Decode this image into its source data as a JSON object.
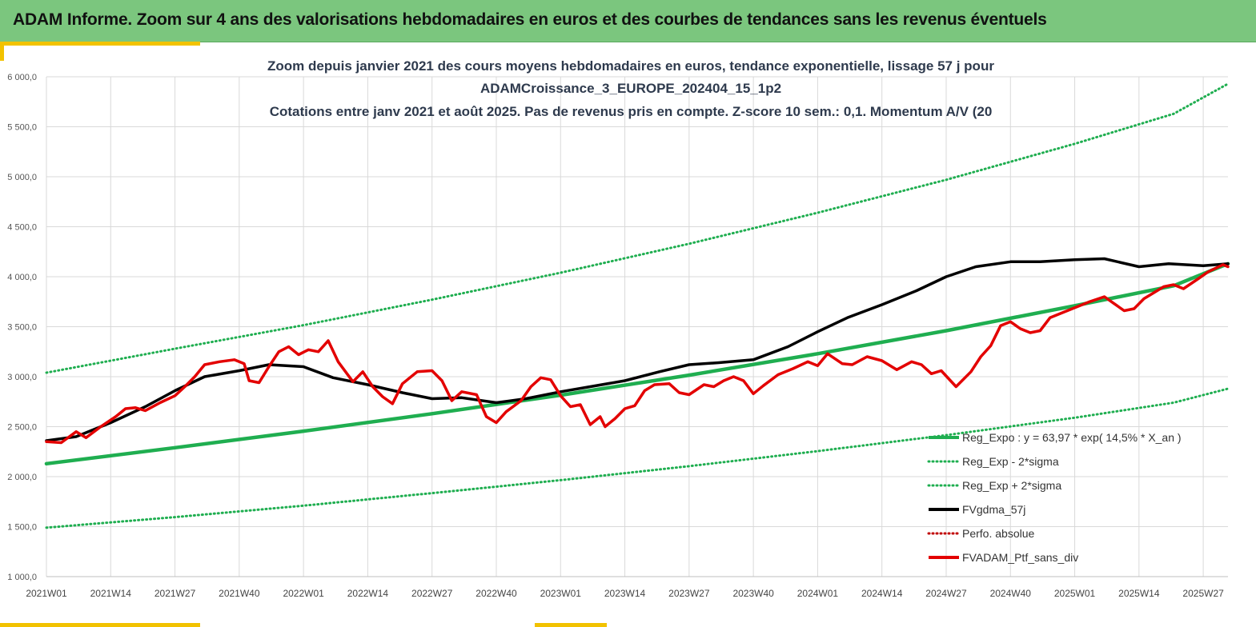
{
  "header": {
    "title": "ADAM Informe. Zoom sur 4 ans des valorisations hebdomadaires en euros et des courbes de tendances sans les revenus éventuels"
  },
  "colors": {
    "banner": "#7bc67e",
    "accent": "#f2c200",
    "trend_green": "#1fae50",
    "gdma_black": "#000000",
    "ptf_red": "#e30000",
    "perfo_red": "#c00000"
  },
  "chart_data": {
    "type": "line",
    "title_lines": [
      "Zoom depuis janvier 2021 des cours moyens hebdomadaires  en euros, tendance exponentielle, lissage 57 j pour",
      "ADAMCroissance_3_EUROPE_202404_15_1p2",
      "Cotations  entre janv 2021 et août 2025. Pas de revenus pris en compte. Z-score 10 sem.: 0,1. Momentum A/V (20"
    ],
    "ylim": [
      1000,
      6000
    ],
    "yticks": [
      "1 000,0",
      "1 500,0",
      "2 000,0",
      "2 500,0",
      "3 000,0",
      "3 500,0",
      "4 000,0",
      "4 500,0",
      "5 000,0",
      "5 500,0",
      "6 000,0"
    ],
    "xticks": [
      "2021W01",
      "2021W14",
      "2021W27",
      "2021W40",
      "2022W01",
      "2022W14",
      "2022W27",
      "2022W40",
      "2023W01",
      "2023W14",
      "2023W27",
      "2023W40",
      "2024W01",
      "2024W14",
      "2024W27",
      "2024W40",
      "2025W01",
      "2025W14",
      "2025W27"
    ],
    "x_range_weeks": [
      0,
      239
    ],
    "grid": "vertical-and-horizontal",
    "legend_position": "bottom-right",
    "series": [
      {
        "name": "Reg_Expo : y = 63,97 * exp( 14,5% *  X_an )",
        "style": "solid-thick",
        "color": "#1fae50",
        "points": [
          [
            0,
            2130
          ],
          [
            26,
            2290
          ],
          [
            52,
            2455
          ],
          [
            78,
            2630
          ],
          [
            104,
            2815
          ],
          [
            130,
            3015
          ],
          [
            156,
            3230
          ],
          [
            182,
            3460
          ],
          [
            208,
            3710
          ],
          [
            228,
            3910
          ],
          [
            239,
            4130
          ]
        ]
      },
      {
        "name": "Reg_Exp - 2*sigma",
        "style": "dotted",
        "color": "#1fae50",
        "points": [
          [
            0,
            1490
          ],
          [
            26,
            1595
          ],
          [
            52,
            1710
          ],
          [
            78,
            1835
          ],
          [
            104,
            1965
          ],
          [
            130,
            2105
          ],
          [
            156,
            2255
          ],
          [
            182,
            2415
          ],
          [
            208,
            2590
          ],
          [
            228,
            2740
          ],
          [
            239,
            2880
          ]
        ]
      },
      {
        "name": "Reg_Exp + 2*sigma",
        "style": "dotted",
        "color": "#1fae50",
        "points": [
          [
            0,
            3040
          ],
          [
            26,
            3280
          ],
          [
            52,
            3515
          ],
          [
            78,
            3770
          ],
          [
            104,
            4040
          ],
          [
            130,
            4330
          ],
          [
            156,
            4640
          ],
          [
            182,
            4970
          ],
          [
            208,
            5330
          ],
          [
            228,
            5630
          ],
          [
            239,
            5930
          ]
        ]
      },
      {
        "name": "FVgdma_57j",
        "style": "solid-thick",
        "color": "#000000",
        "points": [
          [
            0,
            2360
          ],
          [
            6,
            2400
          ],
          [
            13,
            2540
          ],
          [
            20,
            2700
          ],
          [
            26,
            2860
          ],
          [
            32,
            3000
          ],
          [
            39,
            3060
          ],
          [
            45,
            3120
          ],
          [
            52,
            3100
          ],
          [
            58,
            2990
          ],
          [
            65,
            2920
          ],
          [
            72,
            2840
          ],
          [
            78,
            2780
          ],
          [
            84,
            2790
          ],
          [
            91,
            2740
          ],
          [
            97,
            2780
          ],
          [
            104,
            2850
          ],
          [
            110,
            2900
          ],
          [
            117,
            2960
          ],
          [
            124,
            3050
          ],
          [
            130,
            3120
          ],
          [
            136,
            3140
          ],
          [
            143,
            3170
          ],
          [
            150,
            3300
          ],
          [
            156,
            3450
          ],
          [
            162,
            3590
          ],
          [
            169,
            3720
          ],
          [
            176,
            3860
          ],
          [
            182,
            4000
          ],
          [
            188,
            4100
          ],
          [
            195,
            4150
          ],
          [
            201,
            4150
          ],
          [
            208,
            4170
          ],
          [
            214,
            4180
          ],
          [
            221,
            4100
          ],
          [
            227,
            4130
          ],
          [
            234,
            4110
          ],
          [
            239,
            4130
          ]
        ]
      },
      {
        "name": "Perfo. absolue",
        "style": "dotted",
        "color": "#c00000",
        "points": []
      },
      {
        "name": "FVADAM_Ptf_sans_div",
        "style": "solid-thick",
        "color": "#e30000",
        "points": [
          [
            0,
            2350
          ],
          [
            3,
            2340
          ],
          [
            6,
            2450
          ],
          [
            8,
            2390
          ],
          [
            11,
            2500
          ],
          [
            14,
            2600
          ],
          [
            16,
            2680
          ],
          [
            18,
            2690
          ],
          [
            20,
            2660
          ],
          [
            23,
            2740
          ],
          [
            26,
            2810
          ],
          [
            28,
            2900
          ],
          [
            30,
            3000
          ],
          [
            32,
            3120
          ],
          [
            35,
            3150
          ],
          [
            38,
            3170
          ],
          [
            40,
            3130
          ],
          [
            41,
            2960
          ],
          [
            43,
            2940
          ],
          [
            45,
            3100
          ],
          [
            47,
            3250
          ],
          [
            49,
            3300
          ],
          [
            51,
            3220
          ],
          [
            53,
            3270
          ],
          [
            55,
            3250
          ],
          [
            57,
            3360
          ],
          [
            59,
            3150
          ],
          [
            62,
            2950
          ],
          [
            64,
            3050
          ],
          [
            66,
            2900
          ],
          [
            68,
            2800
          ],
          [
            70,
            2730
          ],
          [
            72,
            2930
          ],
          [
            75,
            3050
          ],
          [
            78,
            3060
          ],
          [
            80,
            2960
          ],
          [
            82,
            2760
          ],
          [
            84,
            2850
          ],
          [
            87,
            2820
          ],
          [
            89,
            2600
          ],
          [
            91,
            2540
          ],
          [
            93,
            2650
          ],
          [
            96,
            2760
          ],
          [
            98,
            2900
          ],
          [
            100,
            2990
          ],
          [
            102,
            2970
          ],
          [
            104,
            2810
          ],
          [
            106,
            2700
          ],
          [
            108,
            2720
          ],
          [
            110,
            2520
          ],
          [
            112,
            2600
          ],
          [
            113,
            2500
          ],
          [
            115,
            2580
          ],
          [
            117,
            2680
          ],
          [
            119,
            2710
          ],
          [
            121,
            2860
          ],
          [
            123,
            2920
          ],
          [
            126,
            2930
          ],
          [
            128,
            2840
          ],
          [
            130,
            2820
          ],
          [
            133,
            2920
          ],
          [
            135,
            2900
          ],
          [
            137,
            2960
          ],
          [
            139,
            3000
          ],
          [
            141,
            2960
          ],
          [
            143,
            2830
          ],
          [
            145,
            2910
          ],
          [
            148,
            3020
          ],
          [
            151,
            3080
          ],
          [
            154,
            3150
          ],
          [
            156,
            3110
          ],
          [
            158,
            3230
          ],
          [
            161,
            3130
          ],
          [
            163,
            3120
          ],
          [
            166,
            3200
          ],
          [
            169,
            3160
          ],
          [
            172,
            3070
          ],
          [
            175,
            3150
          ],
          [
            177,
            3120
          ],
          [
            179,
            3030
          ],
          [
            181,
            3060
          ],
          [
            184,
            2900
          ],
          [
            187,
            3050
          ],
          [
            189,
            3200
          ],
          [
            191,
            3310
          ],
          [
            193,
            3510
          ],
          [
            195,
            3550
          ],
          [
            197,
            3480
          ],
          [
            199,
            3440
          ],
          [
            201,
            3460
          ],
          [
            203,
            3590
          ],
          [
            206,
            3650
          ],
          [
            208,
            3690
          ],
          [
            211,
            3750
          ],
          [
            214,
            3800
          ],
          [
            216,
            3730
          ],
          [
            218,
            3660
          ],
          [
            220,
            3680
          ],
          [
            222,
            3780
          ],
          [
            224,
            3840
          ],
          [
            226,
            3900
          ],
          [
            228,
            3920
          ],
          [
            230,
            3880
          ],
          [
            233,
            3980
          ],
          [
            235,
            4050
          ],
          [
            238,
            4120
          ],
          [
            239,
            4100
          ]
        ]
      }
    ]
  }
}
